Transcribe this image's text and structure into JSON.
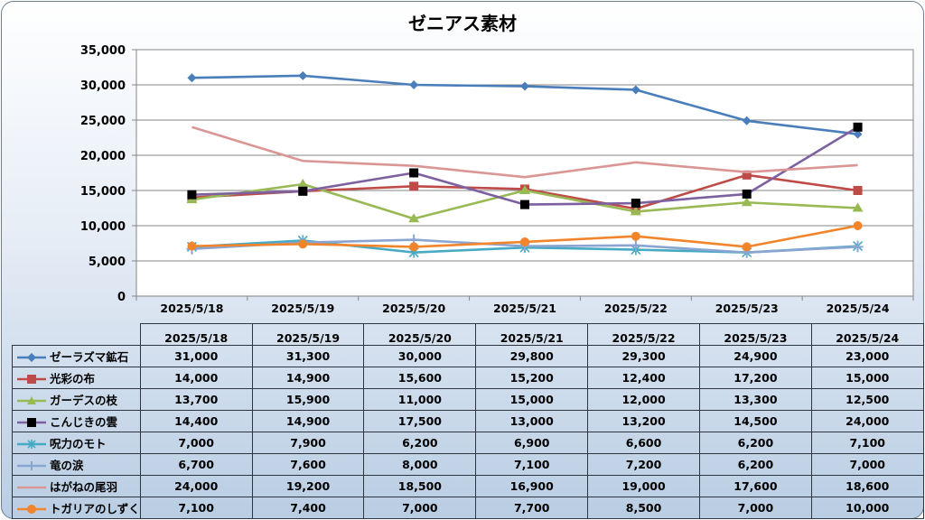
{
  "chart_data": {
    "type": "line",
    "title": "ゼニアス素材",
    "categories": [
      "2025/5/18",
      "2025/5/19",
      "2025/5/20",
      "2025/5/21",
      "2025/5/22",
      "2025/5/23",
      "2025/5/24"
    ],
    "ylim": [
      0,
      35000
    ],
    "yticks": [
      "0",
      "5,000",
      "10,000",
      "15,000",
      "20,000",
      "25,000",
      "30,000",
      "35,000"
    ],
    "ytick_values": [
      0,
      5000,
      10000,
      15000,
      20000,
      25000,
      30000,
      35000
    ],
    "grid": true,
    "legend": "data-table",
    "series": [
      {
        "name": "ゼーラズマ鉱石",
        "values": [
          31000,
          31300,
          30000,
          29800,
          29300,
          24900,
          23000
        ],
        "labels": [
          "31,000",
          "31,300",
          "30,000",
          "29,800",
          "29,300",
          "24,900",
          "23,000"
        ],
        "color": "#4a7ebb",
        "marker": "diamond"
      },
      {
        "name": "光彩の布",
        "values": [
          14000,
          14900,
          15600,
          15200,
          12400,
          17200,
          15000
        ],
        "labels": [
          "14,000",
          "14,900",
          "15,600",
          "15,200",
          "12,400",
          "17,200",
          "15,000"
        ],
        "color": "#be4b48",
        "marker": "square"
      },
      {
        "name": "ガーデスの枝",
        "values": [
          13700,
          15900,
          11000,
          15000,
          12000,
          13300,
          12500
        ],
        "labels": [
          "13,700",
          "15,900",
          "11,000",
          "15,000",
          "12,000",
          "13,300",
          "12,500"
        ],
        "color": "#98b954",
        "marker": "triangle"
      },
      {
        "name": "こんじきの雲",
        "values": [
          14400,
          14900,
          17500,
          13000,
          13200,
          14500,
          24000
        ],
        "labels": [
          "14,400",
          "14,900",
          "17,500",
          "13,000",
          "13,200",
          "14,500",
          "24,000"
        ],
        "color": "#7d60a0",
        "marker": "black-square"
      },
      {
        "name": "呪力のモト",
        "values": [
          7000,
          7900,
          6200,
          6900,
          6600,
          6200,
          7100
        ],
        "labels": [
          "7,000",
          "7,900",
          "6,200",
          "6,900",
          "6,600",
          "6,200",
          "7,100"
        ],
        "color": "#46aac5",
        "marker": "star"
      },
      {
        "name": "竜の涙",
        "values": [
          6700,
          7600,
          8000,
          7100,
          7200,
          6200,
          7000
        ],
        "labels": [
          "6,700",
          "7,600",
          "8,000",
          "7,100",
          "7,200",
          "6,200",
          "7,000"
        ],
        "color": "#8aa5d1",
        "marker": "plus"
      },
      {
        "name": "はがねの尾羽",
        "values": [
          24000,
          19200,
          18500,
          16900,
          19000,
          17600,
          18600
        ],
        "labels": [
          "24,000",
          "19,200",
          "18,500",
          "16,900",
          "19,000",
          "17,600",
          "18,600"
        ],
        "color": "#d99694",
        "marker": "none"
      },
      {
        "name": "トガリアのしずく",
        "values": [
          7100,
          7400,
          7000,
          7700,
          8500,
          7000,
          10000
        ],
        "labels": [
          "7,100",
          "7,400",
          "7,000",
          "7,700",
          "8,500",
          "7,000",
          "10,000"
        ],
        "color": "#f2852b",
        "marker": "circle"
      }
    ]
  }
}
